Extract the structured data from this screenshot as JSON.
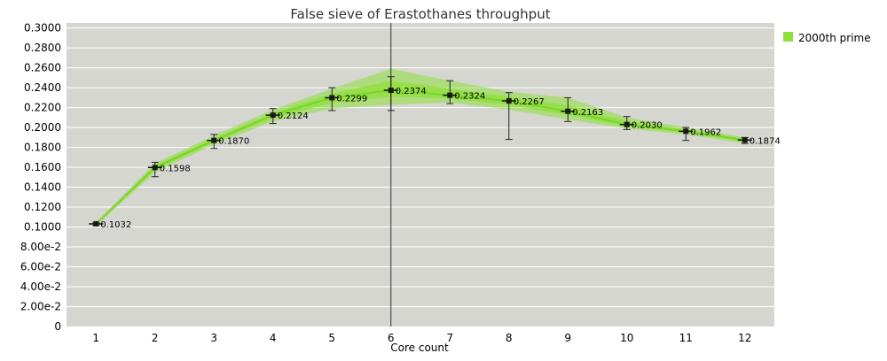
{
  "chart_data": {
    "type": "line",
    "title": "False sieve of Erastothanes throughput",
    "xlabel": "Core count",
    "ylabel": "",
    "categories": [
      "1",
      "2",
      "3",
      "4",
      "5",
      "6",
      "7",
      "8",
      "9",
      "10",
      "11",
      "12"
    ],
    "y_tick_labels": [
      "0",
      "2.00e-2",
      "4.00e-2",
      "6.00e-2",
      "8.00e-2",
      "0.1000",
      "0.1200",
      "0.1400",
      "0.1600",
      "0.1800",
      "0.2000",
      "0.2200",
      "0.2400",
      "0.2600",
      "0.2800",
      "0.3000"
    ],
    "ylim": [
      0,
      0.305
    ],
    "grid": true,
    "legend_position": "top-right",
    "marker_at": "6",
    "series": [
      {
        "name": "2000th prime",
        "color": "#8ee03a",
        "values": [
          0.1032,
          0.1598,
          0.187,
          0.2124,
          0.2299,
          0.2374,
          0.2324,
          0.2267,
          0.2163,
          0.203,
          0.1962,
          0.1874
        ],
        "labels": [
          "0.1032",
          "0.1598",
          "0.1870",
          "0.2124",
          "0.2299",
          "0.2374",
          "0.2324",
          "0.2267",
          "0.2163",
          "0.2030",
          "0.1962",
          "0.1874"
        ],
        "band_low": [
          0.101,
          0.155,
          0.183,
          0.206,
          0.219,
          0.223,
          0.225,
          0.218,
          0.208,
          0.199,
          0.193,
          0.184
        ],
        "band_high": [
          0.1045,
          0.164,
          0.192,
          0.218,
          0.239,
          0.259,
          0.247,
          0.236,
          0.23,
          0.21,
          0.2,
          0.19
        ],
        "err_low": [
          0.1015,
          0.1505,
          0.179,
          0.204,
          0.217,
          0.217,
          0.224,
          0.188,
          0.206,
          0.198,
          0.187,
          0.184
        ],
        "err_high": [
          0.104,
          0.165,
          0.193,
          0.219,
          0.24,
          0.251,
          0.247,
          0.235,
          0.23,
          0.211,
          0.2,
          0.19
        ]
      }
    ]
  }
}
